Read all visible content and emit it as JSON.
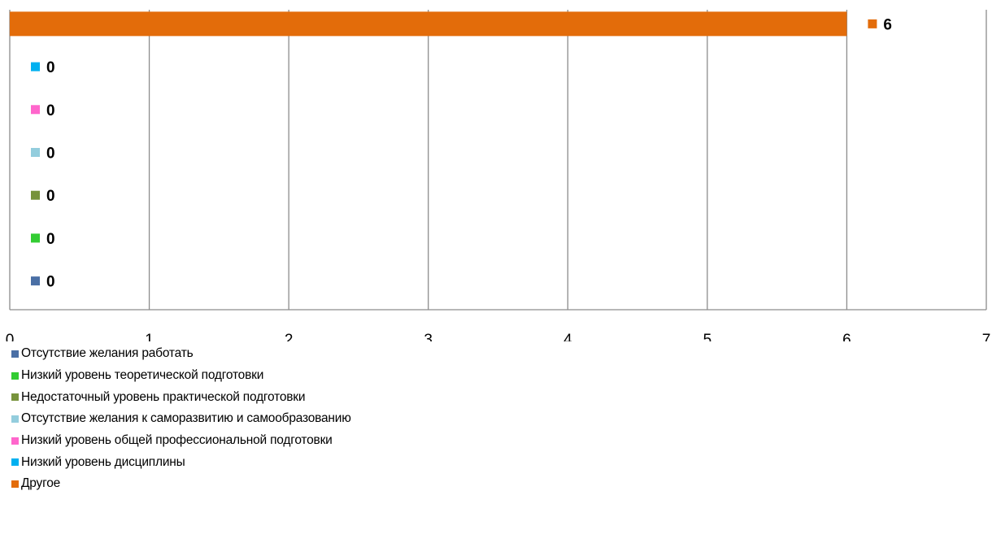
{
  "chart_data": {
    "type": "bar",
    "orientation": "horizontal",
    "xlim": [
      0,
      7
    ],
    "x_ticks": [
      0,
      1,
      2,
      3,
      4,
      5,
      6,
      7
    ],
    "grid": true,
    "legend_position": "bottom-left",
    "series": [
      {
        "name": "Отсутствие желания работать",
        "value": 0,
        "color": "#4a6fa5"
      },
      {
        "name": "Низкий уровень теоретической подготовки",
        "value": 0,
        "color": "#33cc33"
      },
      {
        "name": "Недостаточный уровень практической подготовки",
        "value": 0,
        "color": "#77933c"
      },
      {
        "name": "Отсутствие желания к саморазвитию и самообразованию",
        "value": 0,
        "color": "#93cddd"
      },
      {
        "name": "Низкий уровень общей профессиональной подготовки",
        "value": 0,
        "color": "#ff66cc"
      },
      {
        "name": "Низкий уровень дисциплины",
        "value": 0,
        "color": "#00b0f0"
      },
      {
        "name": "Другое",
        "value": 6,
        "color": "#e36c0a"
      }
    ]
  }
}
